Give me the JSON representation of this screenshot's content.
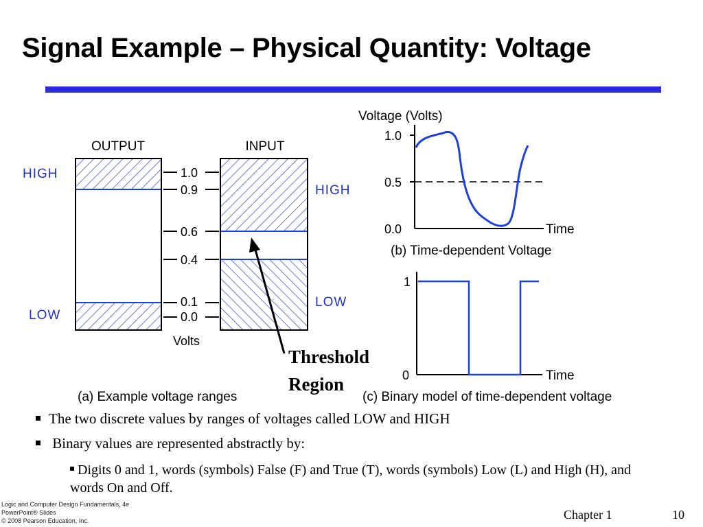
{
  "title": "Signal Example – Physical Quantity: Voltage",
  "colors": {
    "accent": "#2b2bdc",
    "signal": "#1f3fd6",
    "label_blue": "#2233bb"
  },
  "figure_a": {
    "output_label": "OUTPUT",
    "input_label": "INPUT",
    "high_left": "HIGH",
    "low_left": "LOW",
    "high_right": "HIGH",
    "low_right": "LOW",
    "ticks": [
      "1.0",
      "0.9",
      "0.6",
      "0.4",
      "0.1",
      "0.0"
    ],
    "units": "Volts",
    "caption": "(a) Example voltage ranges"
  },
  "threshold": {
    "line1": "Threshold",
    "line2": "Region"
  },
  "figure_b": {
    "ylabel": "Voltage (Volts)",
    "ticks": [
      "1.0",
      "0.5",
      "0.0"
    ],
    "xlabel": "Time",
    "caption": "(b) Time-dependent Voltage"
  },
  "figure_c": {
    "ticks": [
      "1",
      "0"
    ],
    "xlabel": "Time",
    "caption": "(c) Binary model of time-dependent voltage"
  },
  "bullets": {
    "b1": "The two discrete values by ranges of  voltages called LOW and HIGH",
    "b2": "Binary values are represented abstractly by:",
    "b3": "Digits 0 and 1,  words (symbols) False (F) and True (T), words (symbols) Low (L) and High (H), and words On and Off."
  },
  "footer": {
    "line1": "Logic and Computer Design Fundamentals, 4e",
    "line2": "PowerPoint® Slides",
    "line3": "© 2008 Pearson Education, Inc.",
    "chapter": "Chapter 1",
    "page": "10"
  }
}
